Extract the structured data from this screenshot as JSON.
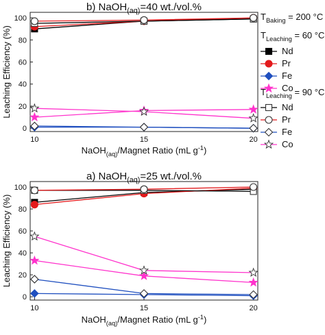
{
  "figure": {
    "ylabel_top": "Leaching Efficiency (%)",
    "ylabel_bottom": "Leaching Efficiency (%)",
    "xlabel_top": "NaOH(aq)/Magnet Ratio (mL g-1)",
    "xlabel_bottom": "NaOH(aq)/Magnet Ratio (mL g-1)"
  },
  "legend": {
    "baking": "T_Baking = 200 °C",
    "group_60": "T_Leaching = 60 °C",
    "group_90": "T_Leaching = 90 °C",
    "entries": [
      {
        "label": "Nd",
        "color": "#000000",
        "marker": "square",
        "filled": true
      },
      {
        "label": "Pr",
        "color": "#e31a1c",
        "marker": "circle",
        "filled": true
      },
      {
        "label": "Fe",
        "color": "#1f4fbf",
        "marker": "diamond",
        "filled": true
      },
      {
        "label": "Co",
        "color": "#ff33cc",
        "marker": "star",
        "filled": true
      },
      {
        "label": "Nd",
        "color": "#000000",
        "marker": "square",
        "filled": false
      },
      {
        "label": "Pr",
        "color": "#e31a1c",
        "marker": "circle",
        "filled": false
      },
      {
        "label": "Fe",
        "color": "#1f4fbf",
        "marker": "diamond",
        "filled": false
      },
      {
        "label": "Co",
        "color": "#ff33cc",
        "marker": "star",
        "filled": false
      }
    ]
  },
  "chart_data": [
    {
      "type": "line",
      "title": "b) NaOH(aq)=40 wt./vol.%",
      "xlabel": "NaOH(aq)/Magnet Ratio (mL g-1)",
      "ylabel": "Leaching Efficiency (%)",
      "x": [
        10,
        15,
        20
      ],
      "xticks": [
        10,
        15,
        20
      ],
      "yticks": [
        0,
        20,
        40,
        60,
        80,
        100
      ],
      "ylim": [
        -3,
        105
      ],
      "series": [
        {
          "name": "Nd 60 °C",
          "element": "Nd",
          "temp": 60,
          "values": [
            90,
            97,
            99
          ]
        },
        {
          "name": "Pr 60 °C",
          "element": "Pr",
          "temp": 60,
          "values": [
            92,
            97,
            100
          ]
        },
        {
          "name": "Fe 60 °C",
          "element": "Fe",
          "temp": 60,
          "values": [
            1,
            1,
            0
          ]
        },
        {
          "name": "Co 60 °C",
          "element": "Co",
          "temp": 60,
          "values": [
            10,
            16,
            17
          ]
        },
        {
          "name": "Nd 90 °C",
          "element": "Nd",
          "temp": 90,
          "values": [
            95,
            97,
            99
          ]
        },
        {
          "name": "Pr 90 °C",
          "element": "Pr",
          "temp": 90,
          "values": [
            97,
            98,
            100
          ]
        },
        {
          "name": "Fe 90 °C",
          "element": "Fe",
          "temp": 90,
          "values": [
            2,
            1,
            0
          ]
        },
        {
          "name": "Co 90 °C",
          "element": "Co",
          "temp": 90,
          "values": [
            18,
            15,
            9
          ]
        }
      ]
    },
    {
      "type": "line",
      "title": "a) NaOH(aq)=25 wt./vol.%",
      "xlabel": "NaOH(aq)/Magnet Ratio (mL g-1)",
      "ylabel": "Leaching Efficiency (%)",
      "x": [
        10,
        15,
        20
      ],
      "xticks": [
        10,
        15,
        20
      ],
      "yticks": [
        0,
        20,
        40,
        60,
        80,
        100
      ],
      "ylim": [
        -3,
        105
      ],
      "series": [
        {
          "name": "Nd 60 °C",
          "element": "Nd",
          "temp": 60,
          "values": [
            86,
            95,
            98
          ]
        },
        {
          "name": "Pr 60 °C",
          "element": "Pr",
          "temp": 60,
          "values": [
            84,
            94,
            99
          ]
        },
        {
          "name": "Fe 60 °C",
          "element": "Fe",
          "temp": 60,
          "values": [
            3,
            2,
            1
          ]
        },
        {
          "name": "Co 60 °C",
          "element": "Co",
          "temp": 60,
          "values": [
            33,
            19,
            13
          ]
        },
        {
          "name": "Nd 90 °C",
          "element": "Nd",
          "temp": 90,
          "values": [
            97,
            97,
            96
          ]
        },
        {
          "name": "Pr 90 °C",
          "element": "Pr",
          "temp": 90,
          "values": [
            97,
            98,
            100
          ]
        },
        {
          "name": "Fe 90 °C",
          "element": "Fe",
          "temp": 90,
          "values": [
            16,
            3,
            2
          ]
        },
        {
          "name": "Co 90 °C",
          "element": "Co",
          "temp": 90,
          "values": [
            55,
            24,
            22
          ]
        }
      ]
    }
  ]
}
